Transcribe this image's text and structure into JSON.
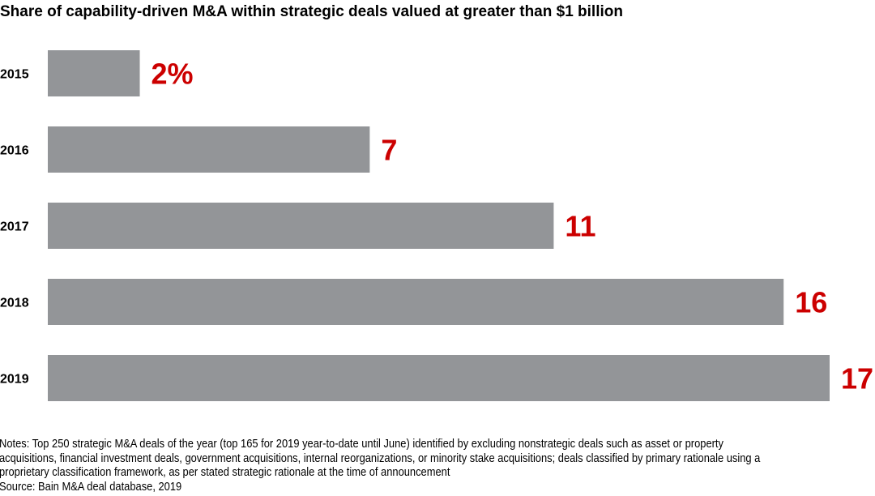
{
  "chart_data": {
    "type": "bar",
    "orientation": "horizontal",
    "title": "Share of capability-driven M&A within strategic deals valued at greater than $1 billion",
    "categories": [
      "2015",
      "2016",
      "2017",
      "2018",
      "2019"
    ],
    "values": [
      2,
      7,
      11,
      16,
      17
    ],
    "data_labels": [
      "2%",
      "7",
      "11",
      "16",
      "17"
    ],
    "unit": "%",
    "xlabel": "",
    "ylabel": "",
    "xlim": [
      0,
      17
    ],
    "grid": false,
    "colors": {
      "bar": "#939598",
      "label": "#cc0000"
    }
  },
  "notes": [
    "Notes: Top 250 strategic M&A deals of the year (top 165 for 2019 year-to-date until June) identified by excluding nonstrategic deals such as asset or property",
    "acquisitions, financial investment deals, government acquisitions, internal reorganizations, or minority stake acquisitions; deals classified by primary rationale using a",
    "proprietary classification framework, as per stated strategic rationale at the time of announcement"
  ],
  "source": "Source: Bain M&A deal database, 2019"
}
